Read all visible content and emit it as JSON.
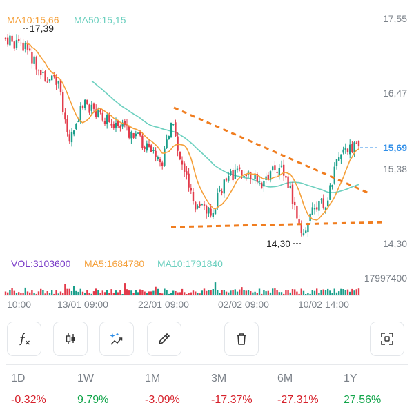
{
  "chart": {
    "price_axis_labels": [
      "17,55",
      "16,47",
      "15,38",
      "14,30"
    ],
    "current_price": "15,69",
    "high_marker": "17,39",
    "low_marker": "14,30",
    "volume_axis_label": "17997400",
    "indicators": {
      "ma10": "MA10:15,66",
      "ma50": "MA50:15,15",
      "vol": "VOL:3103600",
      "vol_ma5": "MA5:1684780",
      "vol_ma10": "MA10:1791840"
    },
    "time_labels": [
      "10:00",
      "13/01 09:00",
      "22/01 09:00",
      "02/02 09:00",
      "10/02 14:00"
    ],
    "colors": {
      "up": "#1a9e8a",
      "down": "#e23b4b",
      "ma10": "#f5a03a",
      "ma50": "#6cd0bf",
      "trendline": "#f07d1f",
      "vol_label": "#7a3cc8",
      "price_label": "#2f8ee8"
    }
  },
  "toolbar": {
    "buttons": [
      "function-icon",
      "candlestick-icon",
      "magic-draw-icon",
      "pencil-icon",
      "trash-icon",
      "fullscreen-icon"
    ]
  },
  "performance": [
    {
      "period": "1D",
      "value": "-0.32%",
      "sign": "neg"
    },
    {
      "period": "1W",
      "value": "9.79%",
      "sign": "pos"
    },
    {
      "period": "1M",
      "value": "-3.09%",
      "sign": "neg"
    },
    {
      "period": "3M",
      "value": "-17.37%",
      "sign": "neg"
    },
    {
      "period": "6M",
      "value": "-27.31%",
      "sign": "neg"
    },
    {
      "period": "1Y",
      "value": "27.56%",
      "sign": "pos"
    }
  ]
}
